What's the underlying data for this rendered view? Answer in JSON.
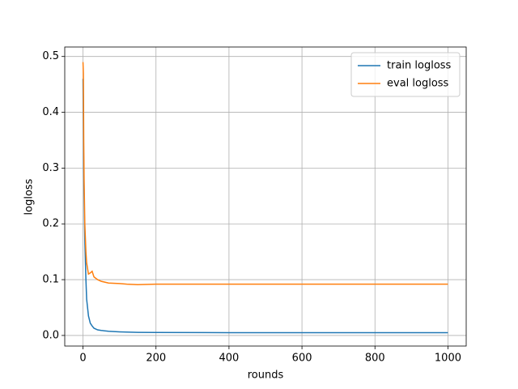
{
  "chart_data": {
    "type": "line",
    "x_label": "rounds",
    "y_label": "logloss",
    "x": [
      0,
      1,
      2,
      3,
      5,
      8,
      10,
      15,
      20,
      25,
      30,
      40,
      50,
      70,
      100,
      120,
      150,
      200,
      400,
      1000
    ],
    "series": [
      {
        "name": "train logloss",
        "color": "#1f77b4",
        "values": [
          0.46,
          0.38,
          0.3,
          0.25,
          0.17,
          0.1,
          0.065,
          0.035,
          0.022,
          0.017,
          0.013,
          0.01,
          0.009,
          0.0075,
          0.0065,
          0.006,
          0.0055,
          0.0053,
          0.005,
          0.005
        ]
      },
      {
        "name": "eval logloss",
        "color": "#ff7f0e",
        "values": [
          0.49,
          0.47,
          0.35,
          0.28,
          0.2,
          0.15,
          0.13,
          0.11,
          0.112,
          0.115,
          0.105,
          0.1,
          0.097,
          0.094,
          0.093,
          0.092,
          0.091,
          0.092,
          0.092,
          0.092
        ]
      }
    ],
    "xlim": [
      -50,
      1050
    ],
    "ylim": [
      -0.019,
      0.517
    ],
    "xticks": [
      0,
      200,
      400,
      600,
      800,
      1000
    ],
    "yticks": [
      {
        "value": 0,
        "label": "0.0"
      },
      0.1,
      0.2,
      0.3,
      0.4,
      0.5
    ],
    "grid": true,
    "legend": "upper right"
  }
}
